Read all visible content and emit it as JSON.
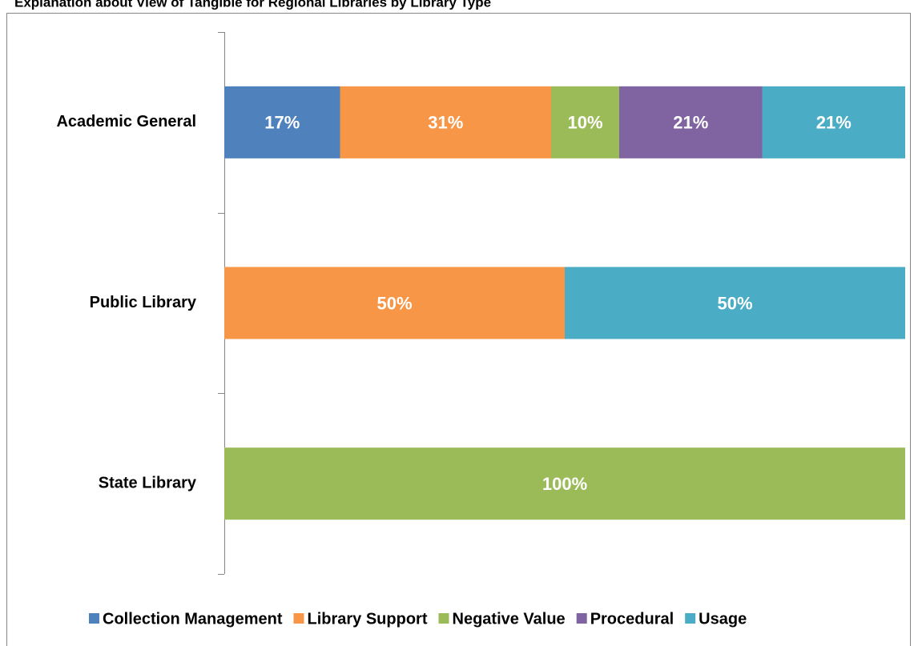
{
  "chart_data": {
    "type": "bar",
    "orientation": "horizontal",
    "stacked": true,
    "title": "Explanation about View of Tangible for Regional Libraries by Library Type",
    "categories": [
      "Academic General",
      "Public Library",
      "State Library"
    ],
    "series": [
      {
        "name": "Collection Management",
        "color": "#4f81bd",
        "values": [
          17,
          null,
          null
        ],
        "value_labels": [
          "17%",
          null,
          null
        ]
      },
      {
        "name": "Library Support",
        "color": "#f79646",
        "values": [
          31,
          50,
          null
        ],
        "value_labels": [
          "31%",
          "50%",
          null
        ]
      },
      {
        "name": "Negative Value",
        "color": "#9bbb59",
        "values": [
          10,
          null,
          100
        ],
        "value_labels": [
          "10%",
          null,
          "100%"
        ]
      },
      {
        "name": "Procedural",
        "color": "#8064a2",
        "values": [
          21,
          null,
          null
        ],
        "value_labels": [
          "21%",
          null,
          null
        ]
      },
      {
        "name": "Usage",
        "color": "#4bacc6",
        "values": [
          21,
          50,
          null
        ],
        "value_labels": [
          "21%",
          "50%",
          null
        ]
      }
    ],
    "legend": "bottom"
  }
}
